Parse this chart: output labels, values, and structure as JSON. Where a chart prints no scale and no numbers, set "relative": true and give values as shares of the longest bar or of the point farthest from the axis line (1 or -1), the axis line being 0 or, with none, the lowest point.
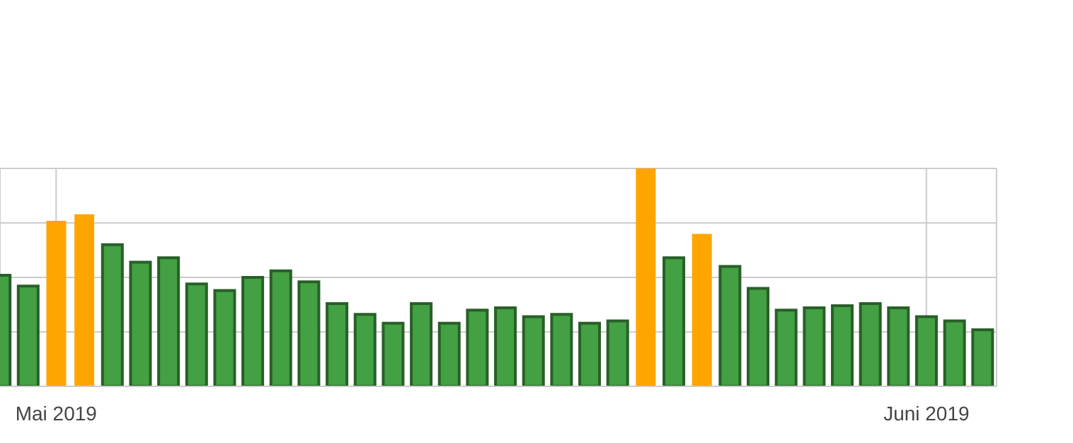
{
  "chart_data": {
    "type": "bar",
    "relative": true,
    "x": [
      "2019-04-29",
      "2019-04-30",
      "2019-05-01",
      "2019-05-02",
      "2019-05-03",
      "2019-05-04",
      "2019-05-05",
      "2019-05-06",
      "2019-05-07",
      "2019-05-08",
      "2019-05-09",
      "2019-05-10",
      "2019-05-11",
      "2019-05-12",
      "2019-05-13",
      "2019-05-14",
      "2019-05-15",
      "2019-05-16",
      "2019-05-17",
      "2019-05-18",
      "2019-05-19",
      "2019-05-20",
      "2019-05-21",
      "2019-05-22",
      "2019-05-23",
      "2019-05-24",
      "2019-05-25",
      "2019-05-26",
      "2019-05-27",
      "2019-05-28",
      "2019-05-29",
      "2019-05-30",
      "2019-05-31",
      "2019-06-01",
      "2019-06-02",
      "2019-06-03"
    ],
    "values": [
      0.51,
      0.46,
      0.76,
      0.79,
      0.65,
      0.57,
      0.59,
      0.47,
      0.44,
      0.5,
      0.53,
      0.48,
      0.38,
      0.33,
      0.29,
      0.38,
      0.29,
      0.35,
      0.36,
      0.32,
      0.33,
      0.29,
      0.3,
      1,
      0.59,
      0.7,
      0.55,
      0.45,
      0.35,
      0.36,
      0.37,
      0.38,
      0.36,
      0.32,
      0.3,
      0.26
    ],
    "colors": [
      "#43a043",
      "#43a043",
      "#ffa500",
      "#ffa500",
      "#43a043",
      "#43a043",
      "#43a043",
      "#43a043",
      "#43a043",
      "#43a043",
      "#43a043",
      "#43a043",
      "#43a043",
      "#43a043",
      "#43a043",
      "#43a043",
      "#43a043",
      "#43a043",
      "#43a043",
      "#43a043",
      "#43a043",
      "#43a043",
      "#43a043",
      "#ffa500",
      "#43a043",
      "#ffa500",
      "#43a043",
      "#43a043",
      "#43a043",
      "#43a043",
      "#43a043",
      "#43a043",
      "#43a043",
      "#43a043",
      "#43a043",
      "#43a043"
    ],
    "xlim": [
      "2019-04-29",
      "2019-06-03T12:00"
    ],
    "xticks": [
      {
        "value": "2019-05-01",
        "label": "Mai 2019"
      },
      {
        "value": "2019-06-01",
        "label": "Juni 2019"
      }
    ],
    "grid": true
  }
}
